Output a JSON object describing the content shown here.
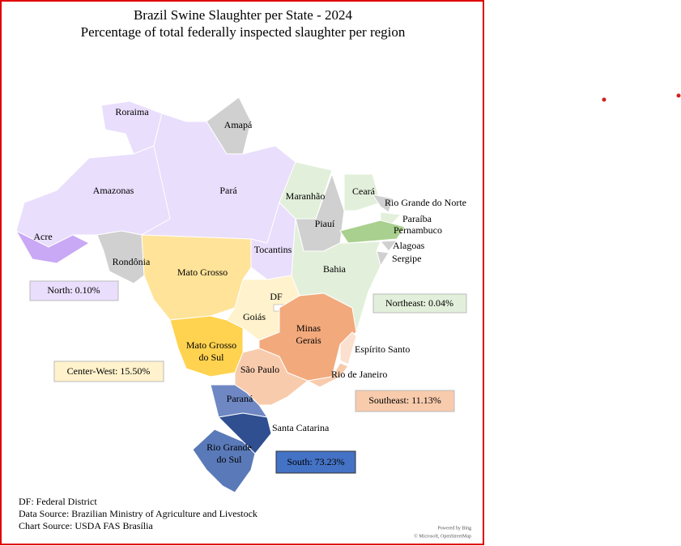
{
  "title": "Brazil Swine Slaughter per State - 2024",
  "subtitle": "Percentage of total federally inspected slaughter per region",
  "states": [
    "Roraima",
    "Amapá",
    "Amazonas",
    "Pará",
    "Acre",
    "Rondônia",
    "Tocantins",
    "Maranhão",
    "Ceará",
    "Rio Grande do Norte",
    "Piauí",
    "Paraíba",
    "Pernambuco",
    "Alagoas",
    "Sergipe",
    "Bahia",
    "Mato Grosso",
    "DF",
    "Goiás",
    [
      "Minas",
      "Gerais"
    ],
    [
      "Mato Grosso",
      "do Sul"
    ],
    "Espírito Santo",
    "São Paulo",
    "Rio de Janeiro",
    "Paraná",
    "Santa Catarina",
    [
      "Rio Grande",
      "do Sul"
    ]
  ],
  "regions": [
    "North: 0.10%",
    "Northeast: 0.04%",
    "Center-West: 15.50%",
    "Southeast: 11.13%",
    "South: 73.23%"
  ],
  "notes": [
    "DF: Federal District",
    "Data Source: Brazilian Ministry of Agriculture and Livestock",
    "Chart Source: USDA FAS Brasília"
  ],
  "attribution": [
    "Powered by Bing",
    "© Microsoft, OpenStreetMap"
  ]
}
